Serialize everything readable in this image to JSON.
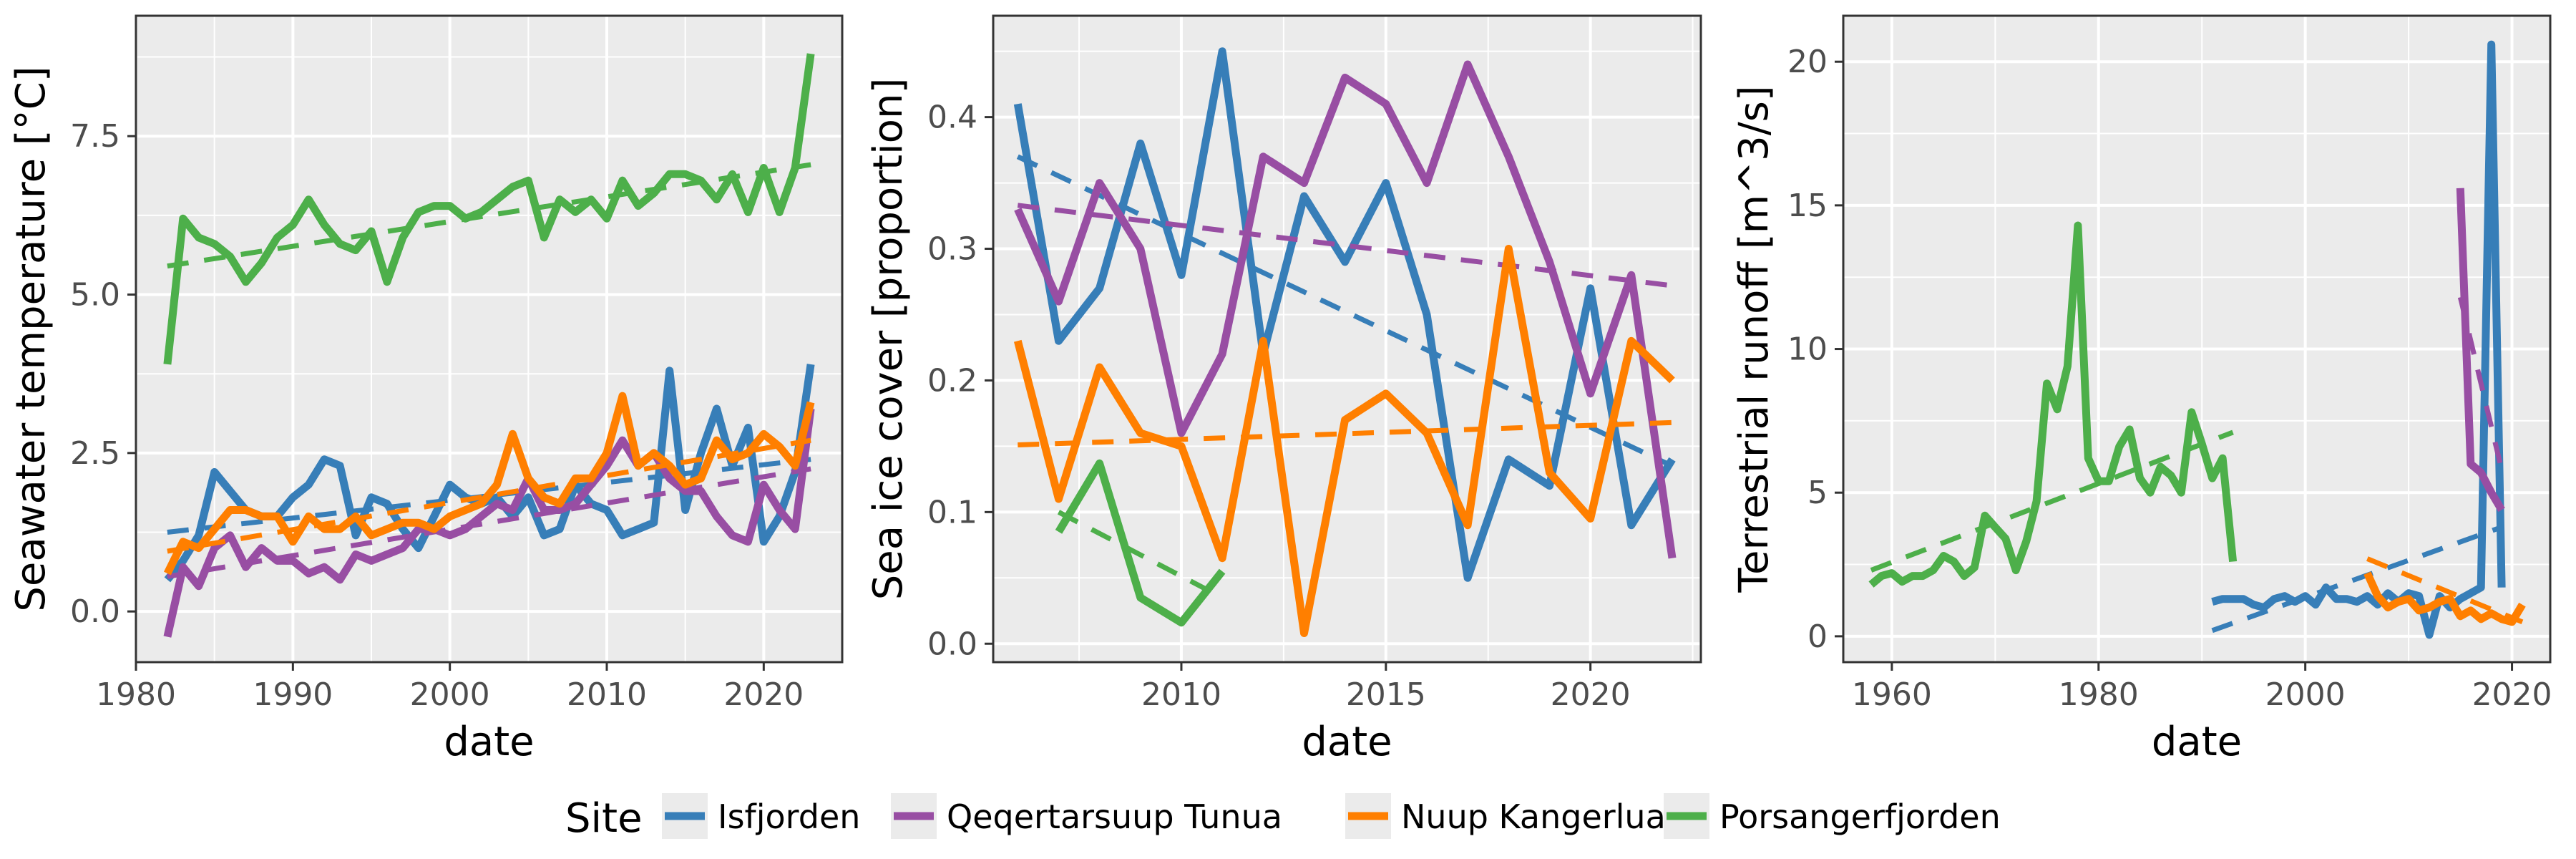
{
  "legend": {
    "title": "Site",
    "entries": [
      {
        "label": "Isfjorden",
        "color": "#377eb8"
      },
      {
        "label": "Qeqertarsuup Tunua",
        "color": "#984ea3"
      },
      {
        "label": "Nuup Kangerlua",
        "color": "#ff7f00"
      },
      {
        "label": "Porsangerfjorden",
        "color": "#4daf4a"
      }
    ]
  },
  "style": {
    "panel_background": "#ebebeb",
    "grid_color": "#ffffff",
    "trend_line": "dashed"
  },
  "chart_data": [
    {
      "type": "line",
      "xlabel": "date",
      "ylabel": "Seawater temperature [°C]",
      "xlim": [
        1980,
        2025
      ],
      "ylim": [
        -0.8,
        9.4
      ],
      "xticks": [
        1980,
        1990,
        2000,
        2010,
        2020
      ],
      "xtick_labels": [
        "1980",
        "1990",
        "2000",
        "2010",
        "2020"
      ],
      "yticks": [
        0,
        2.5,
        5,
        7.5
      ],
      "ytick_labels": [
        "0.0",
        "2.5",
        "5.0",
        "7.5"
      ],
      "grid": true,
      "series": [
        {
          "name": "Isfjorden",
          "color": "#377eb8",
          "x": [
            1982,
            1983,
            1984,
            1985,
            1986,
            1987,
            1988,
            1989,
            1990,
            1991,
            1992,
            1993,
            1994,
            1995,
            1996,
            1997,
            1998,
            1999,
            2000,
            2001,
            2002,
            2003,
            2004,
            2005,
            2006,
            2007,
            2008,
            2009,
            2010,
            2011,
            2012,
            2013,
            2014,
            2015,
            2016,
            2017,
            2018,
            2019,
            2020,
            2021,
            2022,
            2023
          ],
          "y": [
            0.5,
            0.8,
            1.2,
            2.2,
            1.9,
            1.6,
            1.5,
            1.5,
            1.8,
            2.0,
            2.4,
            2.3,
            1.2,
            1.8,
            1.7,
            1.3,
            1.0,
            1.5,
            2.0,
            1.8,
            1.7,
            1.8,
            1.5,
            1.8,
            1.2,
            1.3,
            2.0,
            1.7,
            1.6,
            1.2,
            1.3,
            1.4,
            3.8,
            1.6,
            2.5,
            3.2,
            2.3,
            2.9,
            1.1,
            1.5,
            2.2,
            3.9
          ],
          "trend": [
            [
              1982,
              1.25
            ],
            [
              2023,
              2.4
            ]
          ]
        },
        {
          "name": "Qeqertarsuup Tunua",
          "color": "#984ea3",
          "x": [
            1982,
            1983,
            1984,
            1985,
            1986,
            1987,
            1988,
            1989,
            1990,
            1991,
            1992,
            1993,
            1994,
            1995,
            1996,
            1997,
            1998,
            1999,
            2000,
            2001,
            2002,
            2003,
            2004,
            2005,
            2006,
            2007,
            2008,
            2009,
            2010,
            2011,
            2012,
            2013,
            2014,
            2015,
            2016,
            2017,
            2018,
            2019,
            2020,
            2021,
            2022,
            2023
          ],
          "y": [
            -0.4,
            0.7,
            0.4,
            1.0,
            1.2,
            0.7,
            1.0,
            0.8,
            0.8,
            0.6,
            0.7,
            0.5,
            0.9,
            0.8,
            0.9,
            1.0,
            1.3,
            1.3,
            1.2,
            1.3,
            1.5,
            1.7,
            1.6,
            2.1,
            1.6,
            1.6,
            1.7,
            2.0,
            2.3,
            2.7,
            2.3,
            2.5,
            2.1,
            1.9,
            1.9,
            1.5,
            1.2,
            1.1,
            2.0,
            1.6,
            1.3,
            3.2
          ],
          "trend": [
            [
              1982,
              0.55
            ],
            [
              2023,
              2.25
            ]
          ]
        },
        {
          "name": "Nuup Kangerlua",
          "color": "#ff7f00",
          "x": [
            1982,
            1983,
            1984,
            1985,
            1986,
            1987,
            1988,
            1989,
            1990,
            1991,
            1992,
            1993,
            1994,
            1995,
            1996,
            1997,
            1998,
            1999,
            2000,
            2001,
            2002,
            2003,
            2004,
            2005,
            2006,
            2007,
            2008,
            2009,
            2010,
            2011,
            2012,
            2013,
            2014,
            2015,
            2016,
            2017,
            2018,
            2019,
            2020,
            2021,
            2022,
            2023
          ],
          "y": [
            0.6,
            1.1,
            1.0,
            1.3,
            1.6,
            1.6,
            1.5,
            1.5,
            1.1,
            1.5,
            1.3,
            1.3,
            1.5,
            1.2,
            1.3,
            1.4,
            1.4,
            1.3,
            1.5,
            1.6,
            1.7,
            2.0,
            2.8,
            2.1,
            1.8,
            1.7,
            2.1,
            2.1,
            2.5,
            3.4,
            2.3,
            2.5,
            2.3,
            2.0,
            2.1,
            2.7,
            2.4,
            2.5,
            2.8,
            2.6,
            2.3,
            3.3
          ],
          "trend": [
            [
              1982,
              0.95
            ],
            [
              2023,
              2.7
            ]
          ]
        },
        {
          "name": "Porsangerfjorden",
          "color": "#4daf4a",
          "x": [
            1982,
            1983,
            1984,
            1985,
            1986,
            1987,
            1988,
            1989,
            1990,
            1991,
            1992,
            1993,
            1994,
            1995,
            1996,
            1997,
            1998,
            1999,
            2000,
            2001,
            2002,
            2003,
            2004,
            2005,
            2006,
            2007,
            2008,
            2009,
            2010,
            2011,
            2012,
            2013,
            2014,
            2015,
            2016,
            2017,
            2018,
            2019,
            2020,
            2021,
            2022,
            2023
          ],
          "y": [
            3.9,
            6.2,
            5.9,
            5.8,
            5.6,
            5.2,
            5.5,
            5.9,
            6.1,
            6.5,
            6.1,
            5.8,
            5.7,
            6.0,
            5.2,
            5.9,
            6.3,
            6.4,
            6.4,
            6.2,
            6.3,
            6.5,
            6.7,
            6.8,
            5.9,
            6.5,
            6.3,
            6.5,
            6.2,
            6.8,
            6.4,
            6.6,
            6.9,
            6.9,
            6.8,
            6.5,
            6.9,
            6.3,
            7.0,
            6.3,
            7.0,
            8.8
          ],
          "trend": [
            [
              1982,
              5.45
            ],
            [
              2023,
              7.05
            ]
          ]
        }
      ]
    },
    {
      "type": "line",
      "xlabel": "date",
      "ylabel": "Sea ice cover [proportion]",
      "xlim": [
        2005.4,
        2022.7
      ],
      "ylim": [
        -0.014,
        0.477
      ],
      "xticks": [
        2010,
        2015,
        2020
      ],
      "xtick_labels": [
        "2010",
        "2015",
        "2020"
      ],
      "yticks": [
        0,
        0.1,
        0.2,
        0.3,
        0.4
      ],
      "ytick_labels": [
        "0.0",
        "0.1",
        "0.2",
        "0.3",
        "0.4"
      ],
      "grid": true,
      "series": [
        {
          "name": "Isfjorden",
          "color": "#377eb8",
          "x": [
            2006,
            2007,
            2008,
            2009,
            2010,
            2011,
            2012,
            2013,
            2014,
            2015,
            2016,
            2017,
            2018,
            2019,
            2020,
            2021,
            2022
          ],
          "y": [
            0.41,
            0.23,
            0.27,
            0.38,
            0.28,
            0.45,
            0.22,
            0.34,
            0.29,
            0.35,
            0.25,
            0.05,
            0.14,
            0.12,
            0.27,
            0.09,
            0.14
          ],
          "trend": [
            [
              2006,
              0.37
            ],
            [
              2022,
              0.135
            ]
          ]
        },
        {
          "name": "Qeqertarsuup Tunua",
          "color": "#984ea3",
          "x": [
            2006,
            2007,
            2008,
            2009,
            2010,
            2011,
            2012,
            2013,
            2014,
            2015,
            2016,
            2017,
            2018,
            2019,
            2020,
            2021,
            2022
          ],
          "y": [
            0.33,
            0.26,
            0.35,
            0.3,
            0.16,
            0.22,
            0.37,
            0.35,
            0.43,
            0.41,
            0.35,
            0.44,
            0.37,
            0.29,
            0.19,
            0.28,
            0.065
          ],
          "trend": [
            [
              2006,
              0.333
            ],
            [
              2022,
              0.272
            ]
          ]
        },
        {
          "name": "Nuup Kangerlua",
          "color": "#ff7f00",
          "x": [
            2006,
            2007,
            2008,
            2009,
            2010,
            2011,
            2012,
            2013,
            2014,
            2015,
            2016,
            2017,
            2018,
            2019,
            2020,
            2021,
            2022
          ],
          "y": [
            0.23,
            0.11,
            0.21,
            0.16,
            0.15,
            0.065,
            0.23,
            0.008,
            0.17,
            0.19,
            0.16,
            0.09,
            0.3,
            0.13,
            0.095,
            0.23,
            0.2
          ],
          "trend": [
            [
              2006,
              0.151
            ],
            [
              2022,
              0.168
            ]
          ]
        },
        {
          "name": "Porsangerfjorden",
          "color": "#4daf4a",
          "x": [
            2007,
            2008,
            2009,
            2010,
            2011
          ],
          "y": [
            0.085,
            0.137,
            0.035,
            0.016,
            0.055
          ],
          "trend": [
            [
              2007,
              0.1
            ],
            [
              2011,
              0.035
            ]
          ]
        }
      ]
    },
    {
      "type": "line",
      "xlabel": "date",
      "ylabel": "Terrestrial runoff [m^3/s]",
      "xlim": [
        1955.3,
        2023.7
      ],
      "ylim": [
        -0.9,
        21.6
      ],
      "xticks": [
        1960,
        1980,
        2000,
        2020
      ],
      "xtick_labels": [
        "1960",
        "1980",
        "2000",
        "2020"
      ],
      "yticks": [
        0,
        5,
        10,
        15,
        20
      ],
      "ytick_labels": [
        "0",
        "5",
        "10",
        "15",
        "20"
      ],
      "grid": true,
      "series": [
        {
          "name": "Isfjorden",
          "color": "#377eb8",
          "x": [
            1991,
            1992,
            1993,
            1994,
            1995,
            1996,
            1997,
            1998,
            1999,
            2000,
            2001,
            2002,
            2003,
            2004,
            2005,
            2006,
            2007,
            2008,
            2009,
            2010,
            2011,
            2012,
            2013,
            2014,
            2015,
            2016,
            2017,
            2018,
            2019
          ],
          "y": [
            1.2,
            1.3,
            1.3,
            1.3,
            1.1,
            1.0,
            1.3,
            1.4,
            1.2,
            1.4,
            1.1,
            1.7,
            1.3,
            1.3,
            1.2,
            1.4,
            1.1,
            1.5,
            1.2,
            1.5,
            1.4,
            0.05,
            1.4,
            1.0,
            1.3,
            1.5,
            1.7,
            20.6,
            1.7
          ],
          "trend": [
            [
              1991,
              0.2
            ],
            [
              2019,
              3.8
            ]
          ]
        },
        {
          "name": "Qeqertarsuup Tunua",
          "color": "#984ea3",
          "x": [
            2015,
            2016,
            2017,
            2018,
            2019
          ],
          "y": [
            15.6,
            6.0,
            5.7,
            5.0,
            4.4
          ],
          "trend": [
            [
              2015,
              11.8
            ],
            [
              2019,
              5.8
            ]
          ]
        },
        {
          "name": "Nuup Kangerlua",
          "color": "#ff7f00",
          "x": [
            2006,
            2007,
            2008,
            2009,
            2010,
            2011,
            2012,
            2013,
            2014,
            2015,
            2016,
            2017,
            2018,
            2019,
            2020,
            2021
          ],
          "y": [
            2.2,
            1.4,
            1.0,
            1.2,
            1.3,
            0.9,
            1.0,
            1.2,
            1.3,
            0.7,
            0.9,
            0.6,
            0.8,
            0.6,
            0.5,
            1.1
          ],
          "trend": [
            [
              2006,
              2.7
            ],
            [
              2021,
              0.5
            ]
          ]
        },
        {
          "name": "Porsangerfjorden",
          "color": "#4daf4a",
          "x": [
            1958,
            1959,
            1960,
            1961,
            1962,
            1963,
            1964,
            1965,
            1966,
            1967,
            1968,
            1969,
            1970,
            1971,
            1972,
            1973,
            1974,
            1975,
            1976,
            1977,
            1978,
            1979,
            1980,
            1981,
            1982,
            1983,
            1984,
            1985,
            1986,
            1987,
            1988,
            1989,
            1990,
            1991,
            1992,
            1993
          ],
          "y": [
            1.8,
            2.1,
            2.2,
            1.9,
            2.1,
            2.1,
            2.3,
            2.8,
            2.6,
            2.1,
            2.4,
            4.2,
            3.8,
            3.4,
            2.3,
            3.3,
            4.7,
            8.8,
            7.9,
            9.4,
            14.3,
            6.2,
            5.4,
            5.4,
            6.6,
            7.2,
            5.5,
            5.0,
            5.9,
            5.6,
            5.0,
            7.8,
            6.7,
            5.5,
            6.2,
            2.6
          ],
          "trend": [
            [
              1958,
              2.3
            ],
            [
              1993,
              7.1
            ]
          ]
        }
      ]
    }
  ]
}
